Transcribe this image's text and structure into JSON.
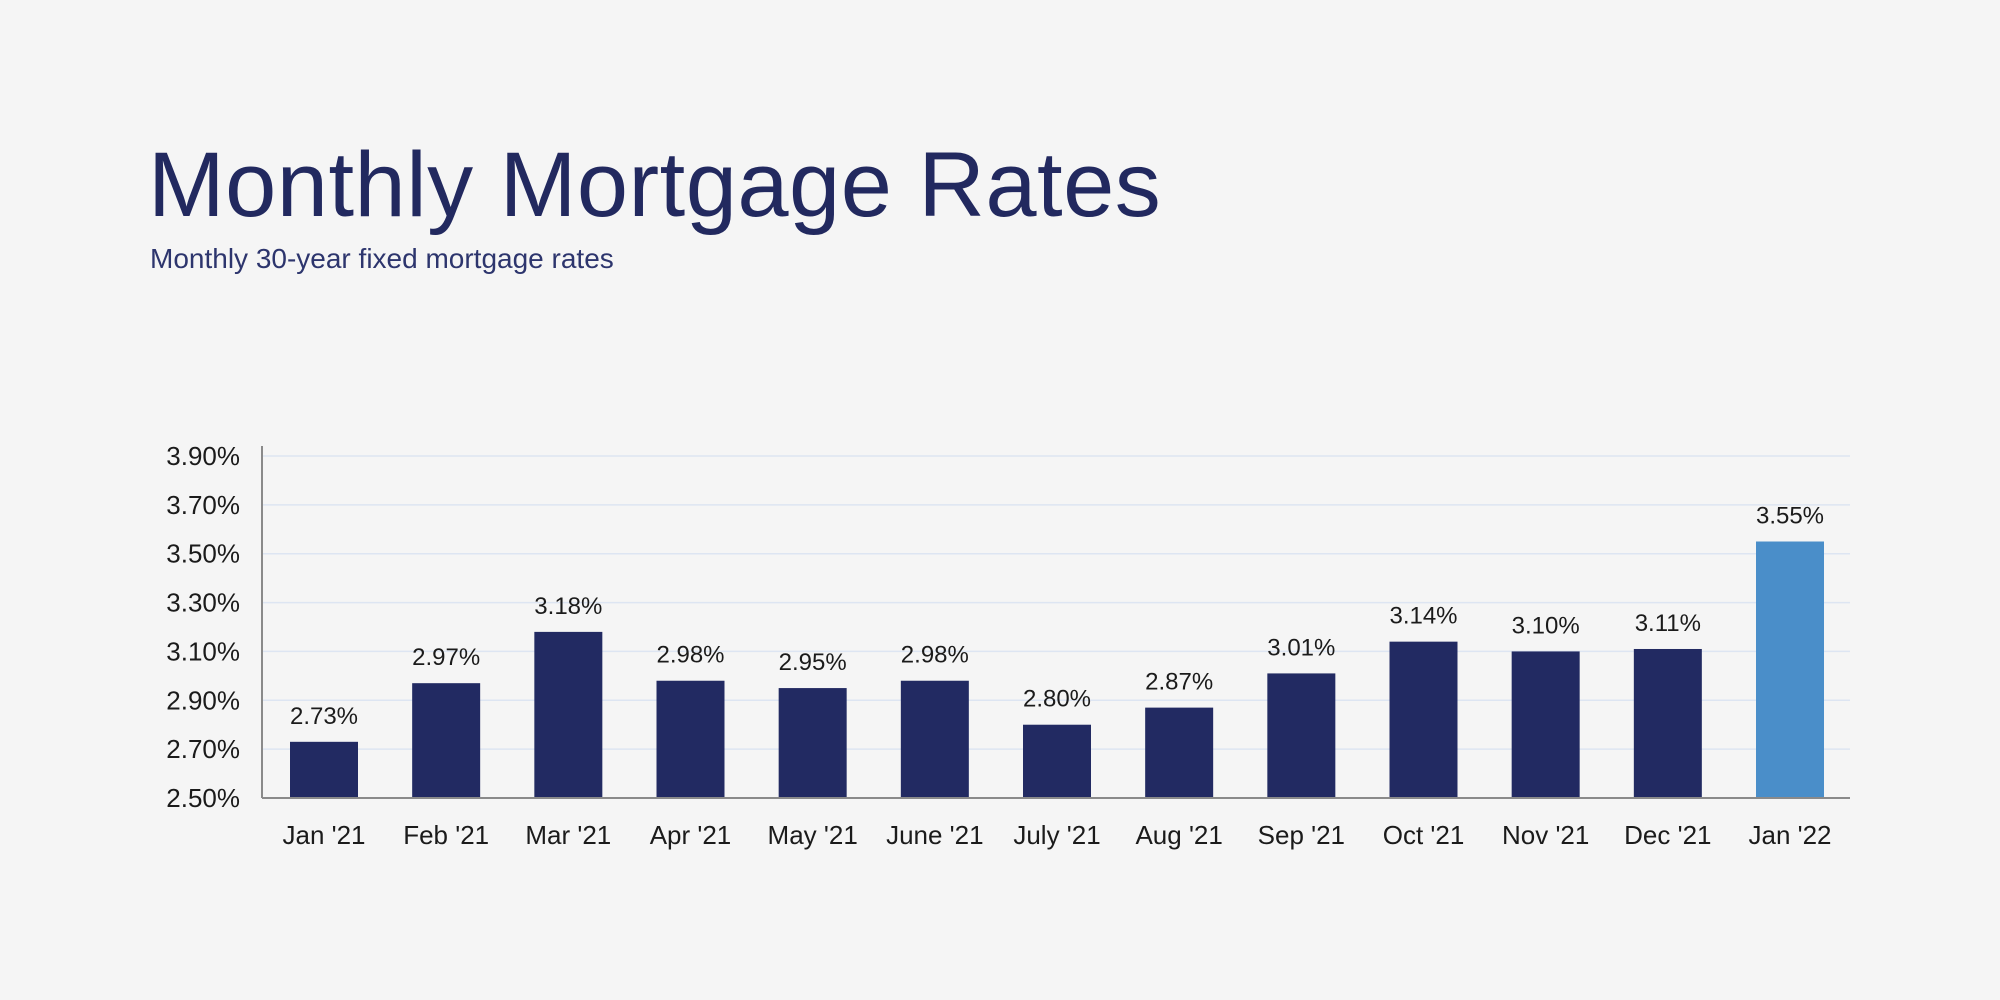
{
  "header": {
    "title": "Monthly Mortgage Rates",
    "subtitle": "Monthly 30-year fixed mortgage rates"
  },
  "colors": {
    "bar": "#222a62",
    "highlight_bar": "#4a8ec9",
    "grid": "#dde5f2",
    "axis": "#8a8a8a",
    "title": "#22295f"
  },
  "chart_data": {
    "type": "bar",
    "title": "Monthly Mortgage Rates",
    "subtitle": "Monthly 30-year fixed mortgage rates",
    "xlabel": "",
    "ylabel": "",
    "categories": [
      "Jan '21",
      "Feb '21",
      "Mar '21",
      "Apr '21",
      "May '21",
      "June '21",
      "July '21",
      "Aug '21",
      "Sep '21",
      "Oct '21",
      "Nov '21",
      "Dec '21",
      "Jan '22"
    ],
    "values": [
      2.73,
      2.97,
      3.18,
      2.98,
      2.95,
      2.98,
      2.8,
      2.87,
      3.01,
      3.14,
      3.1,
      3.11,
      3.55
    ],
    "data_labels": [
      "2.73%",
      "2.97%",
      "3.18%",
      "2.98%",
      "2.95%",
      "2.98%",
      "2.80%",
      "2.87%",
      "3.01%",
      "3.14%",
      "3.10%",
      "3.11%",
      "3.55%"
    ],
    "highlight_index": 12,
    "ylim": [
      2.5,
      3.9
    ],
    "yticks": [
      2.5,
      2.7,
      2.9,
      3.1,
      3.3,
      3.5,
      3.7,
      3.9
    ],
    "ytick_labels": [
      "2.50%",
      "2.70%",
      "2.90%",
      "3.10%",
      "3.30%",
      "3.50%",
      "3.70%",
      "3.90%"
    ],
    "grid": true,
    "legend": "none"
  }
}
